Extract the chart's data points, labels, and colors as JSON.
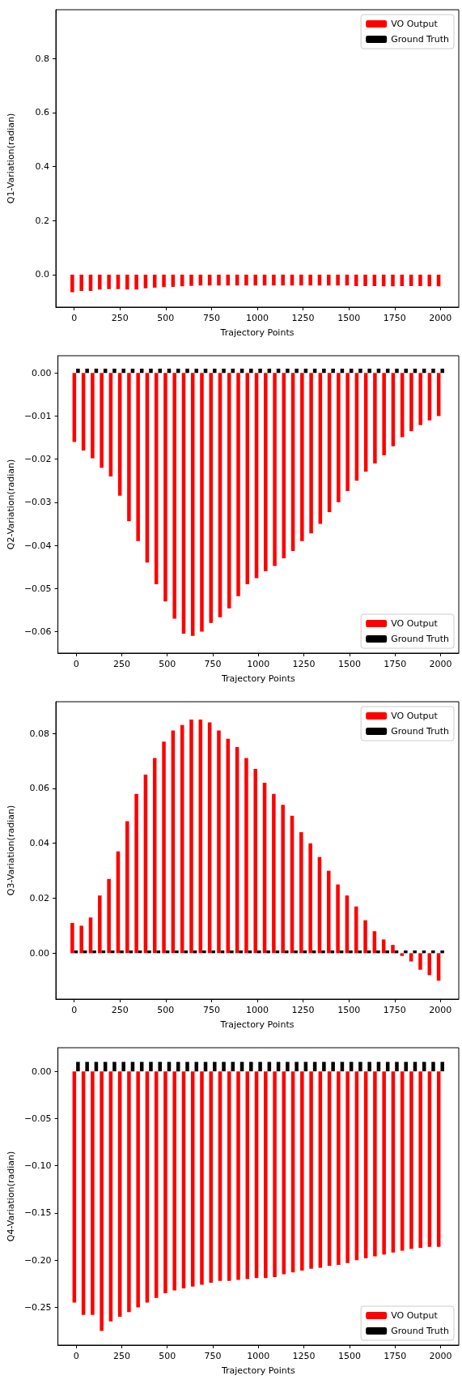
{
  "chart_data": [
    {
      "type": "bar",
      "xlabel": "Trajectory Points",
      "ylabel": "Q1-Variation(radian)",
      "legend": "top right",
      "grid": false,
      "x": [
        0,
        50,
        100,
        150,
        200,
        250,
        300,
        350,
        400,
        450,
        500,
        550,
        600,
        650,
        700,
        750,
        800,
        850,
        900,
        950,
        1000,
        1050,
        1100,
        1150,
        1200,
        1250,
        1300,
        1350,
        1400,
        1450,
        1500,
        1550,
        1600,
        1650,
        1700,
        1750,
        1800,
        1850,
        1900,
        1950,
        2000
      ],
      "xlim": [
        -100,
        2100
      ],
      "xticks": [
        0,
        250,
        500,
        750,
        1000,
        1250,
        1500,
        1750,
        2000
      ],
      "ylim": [
        -0.12,
        0.98
      ],
      "yticks": [
        {
          "value": 0,
          "label": "0.0"
        },
        {
          "value": 0.2,
          "label": "0.2"
        },
        {
          "value": 0.4,
          "label": "0.4"
        },
        {
          "value": 0.6,
          "label": "0.6"
        },
        {
          "value": 0.8,
          "label": "0.8"
        }
      ],
      "series": [
        {
          "name": "VO Output",
          "color": "#ff0000",
          "values": [
            -0.065,
            -0.06,
            -0.06,
            -0.055,
            -0.053,
            -0.053,
            -0.055,
            -0.055,
            -0.05,
            -0.048,
            -0.046,
            -0.045,
            -0.043,
            -0.041,
            -0.04,
            -0.04,
            -0.04,
            -0.04,
            -0.04,
            -0.04,
            -0.04,
            -0.04,
            -0.04,
            -0.04,
            -0.04,
            -0.04,
            -0.04,
            -0.04,
            -0.04,
            -0.04,
            -0.04,
            -0.042,
            -0.042,
            -0.042,
            -0.043,
            -0.043,
            -0.042,
            -0.042,
            -0.042,
            -0.043,
            -0.043
          ]
        },
        {
          "name": "Ground Truth",
          "color": "#000000",
          "values": [
            0,
            0,
            0,
            0,
            0,
            0,
            0,
            0,
            0,
            0,
            0,
            0,
            0,
            0,
            0,
            0,
            0,
            0,
            0,
            0,
            0,
            0,
            0,
            0,
            0,
            0,
            0,
            0,
            0,
            0,
            0,
            0,
            0,
            0,
            0,
            0,
            0,
            0,
            0,
            0,
            0
          ]
        }
      ]
    },
    {
      "type": "bar",
      "xlabel": "Trajectory Points",
      "ylabel": "Q2-Variation(radian)",
      "legend": "bottom right",
      "grid": false,
      "x": [
        0,
        50,
        100,
        150,
        200,
        250,
        300,
        350,
        400,
        450,
        500,
        550,
        600,
        650,
        700,
        750,
        800,
        850,
        900,
        950,
        1000,
        1050,
        1100,
        1150,
        1200,
        1250,
        1300,
        1350,
        1400,
        1450,
        1500,
        1550,
        1600,
        1650,
        1700,
        1750,
        1800,
        1850,
        1900,
        1950,
        2000
      ],
      "xlim": [
        -100,
        2100
      ],
      "xticks": [
        0,
        250,
        500,
        750,
        1000,
        1250,
        1500,
        1750,
        2000
      ],
      "ylim": [
        -0.065,
        0.004
      ],
      "yticks": [
        {
          "value": -0.06,
          "label": "−0.06"
        },
        {
          "value": -0.05,
          "label": "−0.05"
        },
        {
          "value": -0.04,
          "label": "−0.04"
        },
        {
          "value": -0.03,
          "label": "−0.03"
        },
        {
          "value": -0.02,
          "label": "−0.02"
        },
        {
          "value": -0.01,
          "label": "−0.01"
        },
        {
          "value": 0,
          "label": "0.00"
        }
      ],
      "series": [
        {
          "name": "VO Output",
          "color": "#ff0000",
          "values": [
            -0.016,
            -0.018,
            -0.0198,
            -0.022,
            -0.024,
            -0.0285,
            -0.0344,
            -0.039,
            -0.044,
            -0.049,
            -0.053,
            -0.057,
            -0.0605,
            -0.061,
            -0.06,
            -0.058,
            -0.0567,
            -0.0546,
            -0.0518,
            -0.049,
            -0.0476,
            -0.046,
            -0.0448,
            -0.043,
            -0.0413,
            -0.039,
            -0.0372,
            -0.035,
            -0.0323,
            -0.03,
            -0.0274,
            -0.025,
            -0.0229,
            -0.021,
            -0.0191,
            -0.017,
            -0.0149,
            -0.0135,
            -0.0121,
            -0.011,
            -0.01
          ]
        },
        {
          "name": "Ground Truth",
          "color": "#000000",
          "values": [
            0.001,
            0.001,
            0.001,
            0.001,
            0.001,
            0.001,
            0.001,
            0.001,
            0.001,
            0.001,
            0.001,
            0.001,
            0.001,
            0.001,
            0.001,
            0.001,
            0.001,
            0.001,
            0.001,
            0.001,
            0.001,
            0.001,
            0.001,
            0.001,
            0.001,
            0.001,
            0.001,
            0.001,
            0.001,
            0.001,
            0.001,
            0.001,
            0.001,
            0.001,
            0.001,
            0.001,
            0.001,
            0.001,
            0.001,
            0.001,
            0.001
          ]
        }
      ]
    },
    {
      "type": "bar",
      "xlabel": "Trajectory Points",
      "ylabel": "Q3-Variation(radian)",
      "legend": "top right",
      "grid": false,
      "x": [
        0,
        50,
        100,
        150,
        200,
        250,
        300,
        350,
        400,
        450,
        500,
        550,
        600,
        650,
        700,
        750,
        800,
        850,
        900,
        950,
        1000,
        1050,
        1100,
        1150,
        1200,
        1250,
        1300,
        1350,
        1400,
        1450,
        1500,
        1550,
        1600,
        1650,
        1700,
        1750,
        1800,
        1850,
        1900,
        1950,
        2000
      ],
      "xlim": [
        -100,
        2100
      ],
      "xticks": [
        0,
        250,
        500,
        750,
        1000,
        1250,
        1500,
        1750,
        2000
      ],
      "ylim": [
        -0.0167,
        0.0915
      ],
      "yticks": [
        {
          "value": 0,
          "label": "0.00"
        },
        {
          "value": 0.02,
          "label": "0.02"
        },
        {
          "value": 0.04,
          "label": "0.04"
        },
        {
          "value": 0.06,
          "label": "0.06"
        },
        {
          "value": 0.08,
          "label": "0.08"
        }
      ],
      "series": [
        {
          "name": "VO Output",
          "color": "#ff0000",
          "values": [
            0.011,
            0.01,
            0.013,
            0.021,
            0.027,
            0.037,
            0.048,
            0.058,
            0.065,
            0.071,
            0.077,
            0.081,
            0.083,
            0.085,
            0.085,
            0.084,
            0.081,
            0.078,
            0.075,
            0.071,
            0.067,
            0.062,
            0.058,
            0.054,
            0.05,
            0.044,
            0.04,
            0.035,
            0.03,
            0.025,
            0.021,
            0.017,
            0.012,
            0.008,
            0.005,
            0.003,
            -0.001,
            -0.003,
            -0.006,
            -0.008,
            -0.01
          ]
        },
        {
          "name": "Ground Truth",
          "color": "#000000",
          "values": [
            0.001,
            0.001,
            0.001,
            0.001,
            0.001,
            0.001,
            0.001,
            0.001,
            0.001,
            0.001,
            0.001,
            0.001,
            0.001,
            0.001,
            0.001,
            0.001,
            0.001,
            0.001,
            0.001,
            0.001,
            0.001,
            0.001,
            0.001,
            0.001,
            0.001,
            0.001,
            0.001,
            0.001,
            0.001,
            0.001,
            0.001,
            0.001,
            0.001,
            0.001,
            0.001,
            0.001,
            0.001,
            0.001,
            0.001,
            0.001,
            0.001
          ]
        }
      ]
    },
    {
      "type": "bar",
      "xlabel": "Trajectory Points",
      "ylabel": "Q4-Variation(radian)",
      "legend": "bottom right",
      "grid": false,
      "x": [
        0,
        50,
        100,
        150,
        200,
        250,
        300,
        350,
        400,
        450,
        500,
        550,
        600,
        650,
        700,
        750,
        800,
        850,
        900,
        950,
        1000,
        1050,
        1100,
        1150,
        1200,
        1250,
        1300,
        1350,
        1400,
        1450,
        1500,
        1550,
        1600,
        1650,
        1700,
        1750,
        1800,
        1850,
        1900,
        1950,
        2000
      ],
      "xlim": [
        -100,
        2100
      ],
      "xticks": [
        0,
        250,
        500,
        750,
        1000,
        1250,
        1500,
        1750,
        2000
      ],
      "ylim": [
        -0.29,
        0.025
      ],
      "yticks": [
        {
          "value": -0.25,
          "label": "−0.25"
        },
        {
          "value": -0.2,
          "label": "−0.20"
        },
        {
          "value": -0.15,
          "label": "−0.15"
        },
        {
          "value": -0.1,
          "label": "−0.10"
        },
        {
          "value": -0.05,
          "label": "−0.05"
        },
        {
          "value": 0,
          "label": "0.00"
        }
      ],
      "series": [
        {
          "name": "VO Output",
          "color": "#ff0000",
          "values": [
            -0.245,
            -0.258,
            -0.258,
            -0.275,
            -0.265,
            -0.26,
            -0.255,
            -0.25,
            -0.245,
            -0.24,
            -0.235,
            -0.232,
            -0.23,
            -0.228,
            -0.226,
            -0.224,
            -0.222,
            -0.222,
            -0.221,
            -0.22,
            -0.219,
            -0.219,
            -0.218,
            -0.215,
            -0.213,
            -0.211,
            -0.209,
            -0.208,
            -0.206,
            -0.205,
            -0.203,
            -0.2,
            -0.198,
            -0.196,
            -0.194,
            -0.192,
            -0.19,
            -0.188,
            -0.187,
            -0.186,
            -0.186
          ]
        },
        {
          "name": "Ground Truth",
          "color": "#000000",
          "values": [
            0.01,
            0.01,
            0.01,
            0.01,
            0.01,
            0.01,
            0.01,
            0.01,
            0.01,
            0.01,
            0.01,
            0.01,
            0.01,
            0.01,
            0.01,
            0.01,
            0.01,
            0.01,
            0.01,
            0.01,
            0.01,
            0.01,
            0.01,
            0.01,
            0.01,
            0.01,
            0.01,
            0.01,
            0.01,
            0.01,
            0.01,
            0.01,
            0.01,
            0.01,
            0.01,
            0.01,
            0.01,
            0.01,
            0.01,
            0.01,
            0.01
          ]
        }
      ]
    }
  ]
}
